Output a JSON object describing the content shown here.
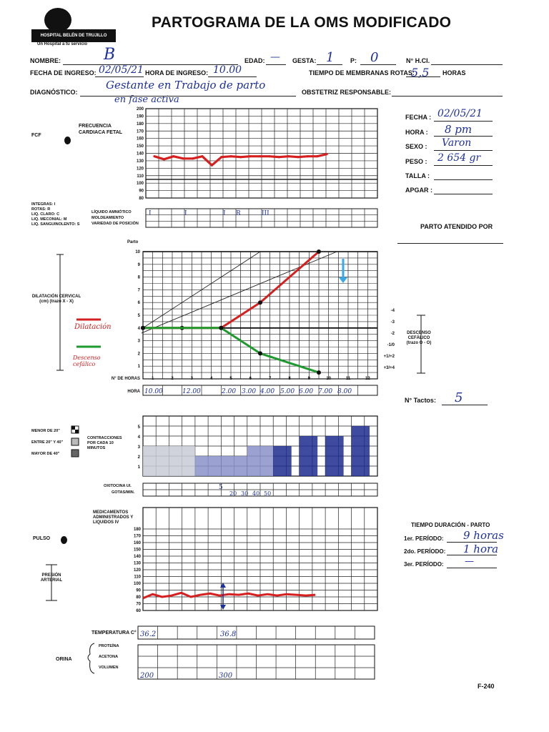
{
  "header": {
    "title": "PARTOGRAMA DE LA OMS MODIFICADO",
    "hospital_name": "HOSPITAL BELÉN DE TRUJILLO",
    "hospital_tagline": "Un Hospital a tu servicio"
  },
  "patient": {
    "nombre_label": "NOMBRE:",
    "nombre_value": "B",
    "edad_label": "EDAD:",
    "edad_value": "—",
    "gesta_label": "GESTA:",
    "gesta_value": "1",
    "p_label": "P:",
    "p_value": "0",
    "hcl_label": "N° H.CI.",
    "fecha_ingreso_label": "FECHA DE INGRESO:",
    "fecha_ingreso_value": "02/05/21",
    "hora_ingreso_label": "HORA DE INGRESO:",
    "hora_ingreso_value": "10.00",
    "membranas_label": "TIEMPO DE MEMBRANAS ROTAS:",
    "membranas_value": "5,5",
    "membranas_unit": "HORAS",
    "diagnostico_label": "DIAGNÓSTICO:",
    "diagnostico_line1": "Gestante en Trabajo de parto",
    "diagnostico_line2": "en fase activa",
    "obstetriz_label": "OBSTETRIZ RESPONSABLE:"
  },
  "birth": {
    "fecha_label": "FECHA :",
    "fecha_value": "02/05/21",
    "hora_label": "HORA :",
    "hora_value": "8 pm",
    "sexo_label": "SEXO :",
    "sexo_value": "Varon",
    "peso_label": "PESO :",
    "peso_value": "2 654 gr",
    "talla_label": "TALLA :",
    "apgar_label": "APGAR :",
    "atendido_label": "PARTO ATENDIDO POR"
  },
  "fcf": {
    "label": "FCF",
    "legend": "FRECUENCIA CARDIACA FETAL",
    "scale": [
      "200",
      "190",
      "180",
      "170",
      "160",
      "150",
      "140",
      "130",
      "120",
      "110",
      "100",
      "90",
      "80"
    ]
  },
  "liquido": {
    "legend_left": [
      "INTEGRAS: I",
      "ROTAS: R",
      "LIQ. CLARO: C",
      "LIQ. MECONIAL: M",
      "LIQ. SANGUINOLENTO: S"
    ],
    "legend_right": [
      "LÍQUIDO AMNIÓTICO",
      "MOLDEAMIENTO",
      "VARIEDAD DE POSICIÓN"
    ],
    "marks": [
      "I",
      "I",
      "I",
      "R",
      "III"
    ]
  },
  "dilatacion": {
    "parto_label": "Parto",
    "left_label": "DILATACIÓN CERVICAL (cm) (trazo X - X)",
    "dil_note": "Dilatación",
    "desc_note": "Descenso cefálico",
    "horas_label": "N° DE HORAS",
    "hora_label": "HORA",
    "horas": [
      "1",
      "2",
      "3",
      "4",
      "5",
      "6",
      "7",
      "8",
      "9",
      "10",
      "11",
      "12"
    ],
    "hora_values": [
      "10.00",
      "12.00",
      "2.00",
      "3.00",
      "4.00",
      "5.00",
      "6.00",
      "7.00",
      "8.00"
    ],
    "descenso_scale": [
      "-4",
      "-3",
      "-2",
      "-1/0",
      "+1/+2",
      "+3/+4"
    ],
    "descenso_label": "DESCENSO CEFÁLICO (trazo O - O)",
    "tactos_label": "N° Tactos:",
    "tactos_value": "5"
  },
  "contracciones": {
    "menor": "MENOR DE 20\"",
    "entre": "ENTRE 20\" Y 40\"",
    "mayor": "MAYOR DE 40\"",
    "label": "CONTRACCIONES POR CADA 10 MINUTOS"
  },
  "oxitocina": {
    "oxi_label": "OXITOCINA UI.",
    "gotas_label": "GOTAS/MIN.",
    "oxi_value": "5",
    "gotas_values": [
      "20",
      "30",
      "40",
      "50"
    ]
  },
  "medicamentos": {
    "label": "MEDICAMENTOS ADMINISTRADOS Y LIQUIDOS IV",
    "pulso_label": "PULSO",
    "presion_label": "PRESIÓN ARTERIAL",
    "scale": [
      "180",
      "170",
      "160",
      "150",
      "140",
      "130",
      "120",
      "110",
      "100",
      "90",
      "80",
      "70",
      "60"
    ]
  },
  "duracion": {
    "title": "TIEMPO DURACIÓN - PARTO",
    "p1_label": "1er. PERÍODO:",
    "p1_value": "9 horas",
    "p2_label": "2do. PERÍODO:",
    "p2_value": "1 hora",
    "p3_label": "3er. PERÍODO:",
    "p3_value": "—"
  },
  "temperatura": {
    "label": "TEMPERATURA C°",
    "values": [
      "36.2",
      "36.8"
    ]
  },
  "orina": {
    "label": "ORINA",
    "rows": [
      "PROTEÍNA",
      "ACETONA",
      "VOLUMEN"
    ],
    "volumen": [
      "200",
      "300"
    ]
  },
  "footer": {
    "form_code": "F-240"
  },
  "chart_data": [
    {
      "type": "line",
      "title": "FRECUENCIA CARDIACA FETAL",
      "ylabel": "FCF",
      "ylim": [
        80,
        200
      ],
      "series": [
        {
          "name": "FCF",
          "x": [
            0,
            0.5,
            1,
            1.5,
            2,
            2.5,
            3,
            3.5,
            4,
            4.5,
            5,
            5.5,
            6,
            6.5,
            7,
            7.5,
            8,
            8.5,
            9
          ],
          "values": [
            136,
            132,
            136,
            133,
            133,
            136,
            124,
            135,
            136,
            135,
            136,
            136,
            136,
            135,
            136,
            135,
            136,
            136,
            139
          ],
          "color": "#d62020"
        }
      ]
    },
    {
      "type": "line",
      "title": "DILATACIÓN CERVICAL",
      "xlabel": "N° DE HORAS",
      "ylabel": "cm",
      "xlim": [
        0,
        12
      ],
      "ylim": [
        0,
        10
      ],
      "series": [
        {
          "name": "Dilatación",
          "x": [
            0,
            2,
            4,
            6,
            9
          ],
          "values": [
            4,
            4,
            4,
            6,
            10
          ],
          "color": "#d62020"
        },
        {
          "name": "Descenso cefálico",
          "x": [
            0,
            4,
            6,
            9
          ],
          "values": [
            4,
            4,
            2,
            0.5
          ],
          "color": "#1e9a2e"
        },
        {
          "name": "Alerta",
          "x": [
            0,
            6
          ],
          "values": [
            4,
            10
          ],
          "color": "#222"
        },
        {
          "name": "Acción",
          "x": [
            0,
            10
          ],
          "values": [
            3.6,
            10
          ],
          "color": "#222"
        }
      ]
    },
    {
      "type": "bar",
      "title": "CONTRACCIONES POR CADA 10 MINUTOS",
      "ylim": [
        0,
        5
      ],
      "series": [
        {
          "name": "Contracciones",
          "x": [
            0,
            1,
            2,
            3,
            4,
            5,
            6,
            7,
            8
          ],
          "values": [
            3,
            3,
            2,
            2,
            3,
            3,
            4,
            4,
            5
          ]
        }
      ]
    },
    {
      "type": "line",
      "title": "PULSO",
      "ylim": [
        60,
        180
      ],
      "series": [
        {
          "name": "Pulso",
          "x": [
            0,
            0.5,
            1,
            1.5,
            2,
            2.5,
            3,
            3.5,
            4,
            4.5,
            5,
            5.5,
            6,
            6.5,
            7,
            7.5,
            8,
            8.5,
            9
          ],
          "values": [
            78,
            84,
            80,
            82,
            86,
            80,
            83,
            85,
            82,
            84,
            83,
            85,
            82,
            84,
            82,
            84,
            83,
            82,
            83
          ],
          "color": "#d62020"
        }
      ]
    }
  ]
}
